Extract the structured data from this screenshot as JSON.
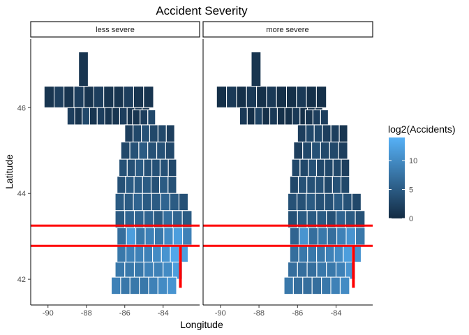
{
  "chart_data": {
    "type": "heatmap",
    "title": "Accident Severity",
    "xlabel": "Longitude",
    "ylabel": "Latitude",
    "xlim": [
      -90.9,
      -82.1
    ],
    "ylim": [
      41.4,
      47.6
    ],
    "x_ticks": [
      -90,
      -88,
      -86,
      -84
    ],
    "x_tick_labels": [
      "-90",
      "-88",
      "-86",
      "-84"
    ],
    "y_ticks": [
      42,
      44,
      46
    ],
    "y_tick_labels": [
      "42",
      "44",
      "46"
    ],
    "grid": false,
    "facets": [
      "less severe",
      "more severe"
    ],
    "legend": {
      "title": "log2(Accidents)",
      "position": "right",
      "breaks": [
        0,
        5,
        10
      ],
      "break_labels": [
        "0",
        "5",
        "10"
      ],
      "range": [
        0,
        14
      ],
      "color_low": "#132B43",
      "color_high": "#56B1F7"
    },
    "reference_lines": {
      "horizontal_latitudes": [
        43.25,
        42.78
      ],
      "vertical_longitude": -83.1,
      "vertical_range": [
        41.8,
        42.78
      ],
      "color": "#ff0000"
    },
    "regions": {
      "upper_peninsula_values": [
        [
          1,
          2,
          1,
          2,
          1,
          2,
          1,
          1,
          2,
          1,
          1
        ],
        [
          2,
          1,
          3,
          1,
          2,
          1,
          1,
          2,
          1,
          1,
          1
        ]
      ],
      "lower_peninsula_rows": [
        {
          "lat": 45.75,
          "lon_start": -85.6,
          "lon_end": -84.4,
          "values": [
            1,
            2,
            3
          ],
          "values_more": [
            1,
            2,
            2
          ]
        },
        {
          "lat": 45.4,
          "lon_start": -86.0,
          "lon_end": -83.4,
          "values": [
            2,
            3,
            4,
            3,
            3,
            2
          ],
          "values_more": [
            2,
            3,
            3,
            2,
            2,
            1
          ]
        },
        {
          "lat": 45.0,
          "lon_start": -86.2,
          "lon_end": -83.4,
          "values": [
            3,
            4,
            5,
            4,
            4,
            3
          ],
          "values_more": [
            2,
            3,
            4,
            3,
            3,
            2
          ]
        },
        {
          "lat": 44.6,
          "lon_start": -86.3,
          "lon_end": -83.3,
          "values": [
            4,
            4,
            5,
            4,
            4,
            4,
            3
          ],
          "values_more": [
            3,
            3,
            4,
            3,
            3,
            3,
            2
          ]
        },
        {
          "lat": 44.2,
          "lon_start": -86.4,
          "lon_end": -83.3,
          "values": [
            4,
            5,
            5,
            5,
            4,
            5,
            4
          ],
          "values_more": [
            3,
            4,
            4,
            4,
            3,
            4,
            3
          ]
        },
        {
          "lat": 43.8,
          "lon_start": -86.5,
          "lon_end": -82.7,
          "values": [
            5,
            5,
            6,
            5,
            5,
            6,
            5,
            4
          ],
          "values_more": [
            4,
            4,
            5,
            4,
            4,
            5,
            4,
            3
          ]
        },
        {
          "lat": 43.4,
          "lon_start": -86.5,
          "lon_end": -82.5,
          "values": [
            5,
            6,
            6,
            6,
            5,
            7,
            6,
            5
          ],
          "values_more": [
            4,
            5,
            5,
            5,
            4,
            6,
            5,
            4
          ]
        },
        {
          "lat": 43.0,
          "lon_start": -86.4,
          "lon_end": -82.5,
          "values": [
            7,
            12,
            8,
            9,
            8,
            10,
            12,
            9
          ],
          "values_more": [
            6,
            11,
            7,
            8,
            7,
            9,
            11,
            8
          ]
        },
        {
          "lat": 42.6,
          "lon_start": -86.4,
          "lon_end": -82.7,
          "values": [
            8,
            9,
            9,
            9,
            10,
            11,
            13,
            12
          ],
          "values_more": [
            7,
            8,
            8,
            8,
            9,
            10,
            12,
            11
          ]
        },
        {
          "lat": 42.2,
          "lon_start": -86.5,
          "lon_end": -83.0,
          "values": [
            8,
            8,
            8,
            9,
            9,
            10,
            12
          ],
          "values_more": [
            7,
            7,
            7,
            8,
            8,
            9,
            11
          ]
        },
        {
          "lat": 41.85,
          "lon_start": -86.7,
          "lon_end": -83.3,
          "values": [
            9,
            8,
            8,
            8,
            9,
            10,
            11
          ],
          "values_more": [
            8,
            7,
            7,
            7,
            8,
            9,
            10
          ]
        }
      ]
    }
  }
}
